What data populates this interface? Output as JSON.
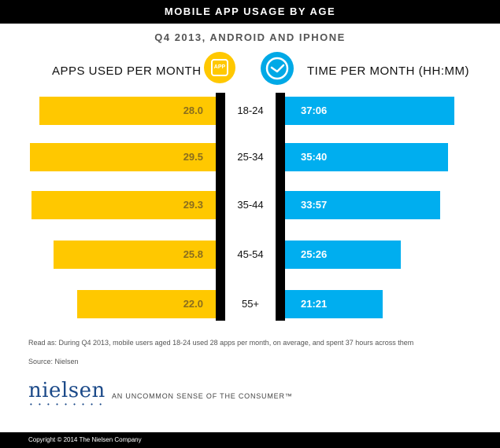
{
  "header": {
    "title": "MOBILE APP USAGE BY AGE"
  },
  "subtitle": "Q4 2013, ANDROID AND IPHONE",
  "left_heading": "APPS USED PER MONTH",
  "right_heading": "TIME PER MONTH (HH:MM)",
  "app_icon_label": "APP",
  "note": "Read as: During Q4 2013, mobile users aged 18-24 used 28 apps per month, on average, and spent 37 hours across them",
  "source": "Source: Nielsen",
  "logo_text": "nielsen",
  "logo_dots": "• • • • • • • • •",
  "tagline": "AN UNCOMMON SENSE OF THE CONSUMER™",
  "copyright": "Copyright © 2014 The Nielsen Company",
  "colors": {
    "apps": "#ffc800",
    "time": "#00aeef",
    "header": "#000000"
  },
  "chart_data": {
    "type": "bar",
    "categories": [
      "18-24",
      "25-34",
      "35-44",
      "45-54",
      "55+"
    ],
    "series": [
      {
        "name": "APPS USED PER MONTH",
        "values": [
          28.0,
          29.5,
          29.3,
          25.8,
          22.0
        ],
        "labels": [
          "28.0",
          "29.5",
          "29.3",
          "25.8",
          "22.0"
        ]
      },
      {
        "name": "TIME PER MONTH (HH:MM)",
        "values": [
          37.1,
          35.67,
          33.95,
          25.43,
          21.35
        ],
        "labels": [
          "37:06",
          "35:40",
          "33:57",
          "25:26",
          "21:21"
        ]
      }
    ]
  }
}
